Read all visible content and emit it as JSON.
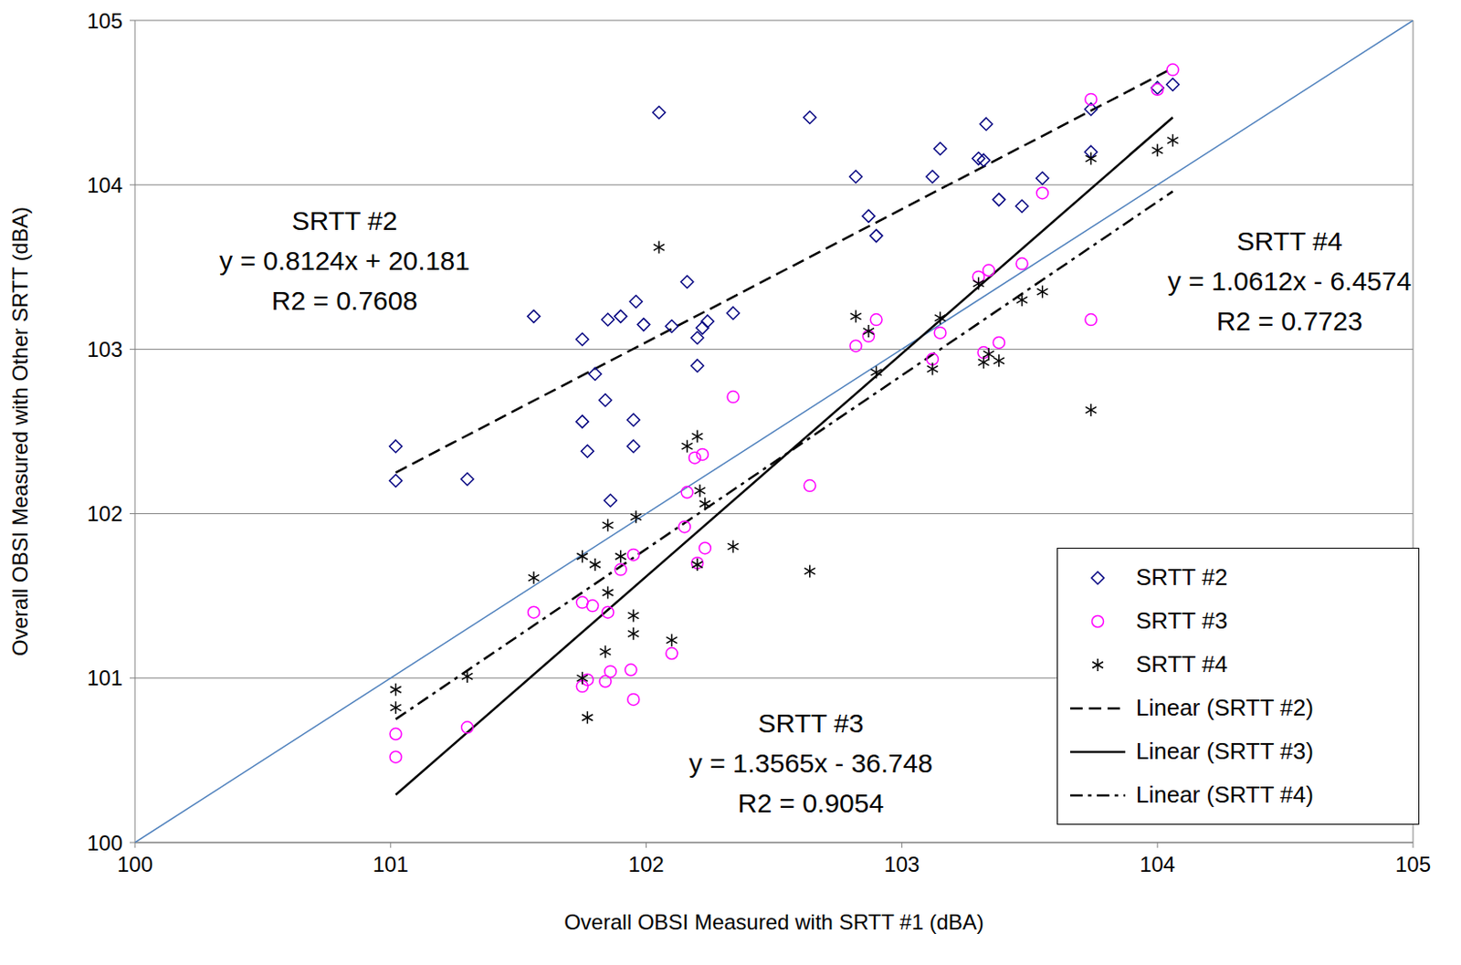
{
  "chart_data": {
    "type": "scatter",
    "x_label": "Overall OBSI Measured with SRTT #1 (dBA)",
    "y_label": "Overall OBSI Measured with Other SRTT (dBA)",
    "xlim": [
      100,
      105
    ],
    "xticks": [
      100,
      101,
      102,
      103,
      104,
      105
    ],
    "ylim": [
      100,
      105
    ],
    "yticks": [
      100,
      101,
      102,
      103,
      104,
      105
    ],
    "grid": true,
    "legend": "lower right",
    "reference_line": {
      "x": [
        100,
        105
      ],
      "y": [
        100,
        105
      ],
      "color": "#4f81bd",
      "line_style": "solid"
    },
    "series": [
      {
        "name": "SRTT #2",
        "color": "#000080",
        "marker": "diamond",
        "x": [
          101.02,
          101.02,
          101.3,
          101.56,
          101.75,
          101.77,
          101.75,
          101.8,
          101.84,
          101.85,
          101.86,
          101.9,
          101.95,
          101.95,
          101.96,
          101.99,
          102.05,
          102.1,
          102.16,
          102.2,
          102.2,
          102.22,
          102.24,
          102.34,
          102.64,
          102.82,
          102.87,
          102.9,
          103.12,
          103.15,
          103.3,
          103.32,
          103.33,
          103.38,
          103.47,
          103.55,
          103.74,
          103.74,
          104.0,
          104.06
        ],
        "values": [
          102.41,
          102.2,
          102.21,
          103.2,
          103.06,
          102.38,
          102.56,
          102.85,
          102.69,
          103.18,
          102.08,
          103.2,
          102.57,
          102.41,
          103.29,
          103.15,
          104.44,
          103.14,
          103.41,
          102.9,
          103.07,
          103.13,
          103.17,
          103.22,
          104.41,
          104.05,
          103.81,
          103.69,
          104.05,
          104.22,
          104.16,
          104.15,
          104.37,
          103.91,
          103.87,
          104.04,
          104.46,
          104.2,
          104.59,
          104.61
        ],
        "trendline": {
          "name": "Linear (SRTT #2)",
          "color": "#000000",
          "line_style": "dashed",
          "x": [
            101.02,
            104.06
          ],
          "y": [
            102.25,
            104.71
          ],
          "equation": "y = 0.8124x + 20.181",
          "r2": "R2 = 0.7608"
        }
      },
      {
        "name": "SRTT #3",
        "color": "#ff00ff",
        "marker": "circle",
        "x": [
          101.02,
          101.02,
          101.3,
          101.56,
          101.75,
          101.79,
          101.75,
          101.77,
          101.84,
          101.86,
          101.85,
          101.9,
          101.95,
          101.94,
          101.95,
          102.1,
          102.15,
          102.16,
          102.19,
          102.22,
          102.2,
          102.23,
          102.34,
          102.64,
          102.82,
          102.87,
          102.9,
          103.12,
          103.15,
          103.3,
          103.34,
          103.32,
          103.38,
          103.47,
          103.55,
          103.74,
          103.74,
          104.0,
          104.06
        ],
        "values": [
          100.66,
          100.52,
          100.7,
          101.4,
          101.46,
          101.44,
          100.95,
          100.99,
          100.98,
          101.04,
          101.4,
          101.66,
          101.75,
          101.05,
          100.87,
          101.15,
          101.92,
          102.13,
          102.34,
          102.36,
          101.7,
          101.79,
          102.71,
          102.17,
          103.02,
          103.08,
          103.18,
          102.94,
          103.1,
          103.44,
          103.48,
          102.98,
          103.04,
          103.52,
          103.95,
          104.52,
          103.18,
          104.58,
          104.7
        ],
        "trendline": {
          "name": "Linear (SRTT #3)",
          "color": "#000000",
          "line_style": "solid",
          "x": [
            101.02,
            104.06
          ],
          "y": [
            100.29,
            104.41
          ],
          "equation": "y = 1.3565x - 36.748",
          "r2": "R2 = 0.9054"
        }
      },
      {
        "name": "SRTT #4",
        "color": "#000000",
        "marker": "asterisk",
        "x": [
          101.02,
          101.02,
          101.3,
          101.56,
          101.75,
          101.75,
          101.77,
          101.8,
          101.85,
          101.85,
          101.84,
          101.9,
          101.95,
          101.95,
          101.96,
          102.05,
          102.1,
          102.16,
          102.2,
          102.21,
          102.23,
          102.2,
          102.34,
          102.64,
          102.82,
          102.87,
          102.9,
          103.12,
          103.15,
          103.3,
          103.32,
          103.34,
          103.38,
          103.47,
          103.55,
          103.74,
          103.74,
          104.0,
          104.06
        ],
        "values": [
          100.93,
          100.82,
          101.01,
          101.61,
          101.74,
          101.0,
          100.76,
          101.69,
          101.93,
          101.52,
          101.16,
          101.74,
          101.38,
          101.27,
          101.98,
          103.62,
          101.23,
          102.41,
          102.47,
          102.14,
          102.06,
          101.69,
          101.8,
          101.65,
          103.2,
          103.11,
          102.86,
          102.88,
          103.19,
          103.4,
          102.92,
          102.97,
          102.93,
          103.3,
          103.35,
          104.16,
          102.63,
          104.21,
          104.27
        ],
        "trendline": {
          "name": "Linear (SRTT #4)",
          "color": "#000000",
          "line_style": "dashdot",
          "x": [
            101.02,
            104.06
          ],
          "y": [
            100.75,
            103.96
          ],
          "equation": "y = 1.0612x - 6.4574",
          "r2": "R2 = 0.7723"
        }
      }
    ]
  }
}
